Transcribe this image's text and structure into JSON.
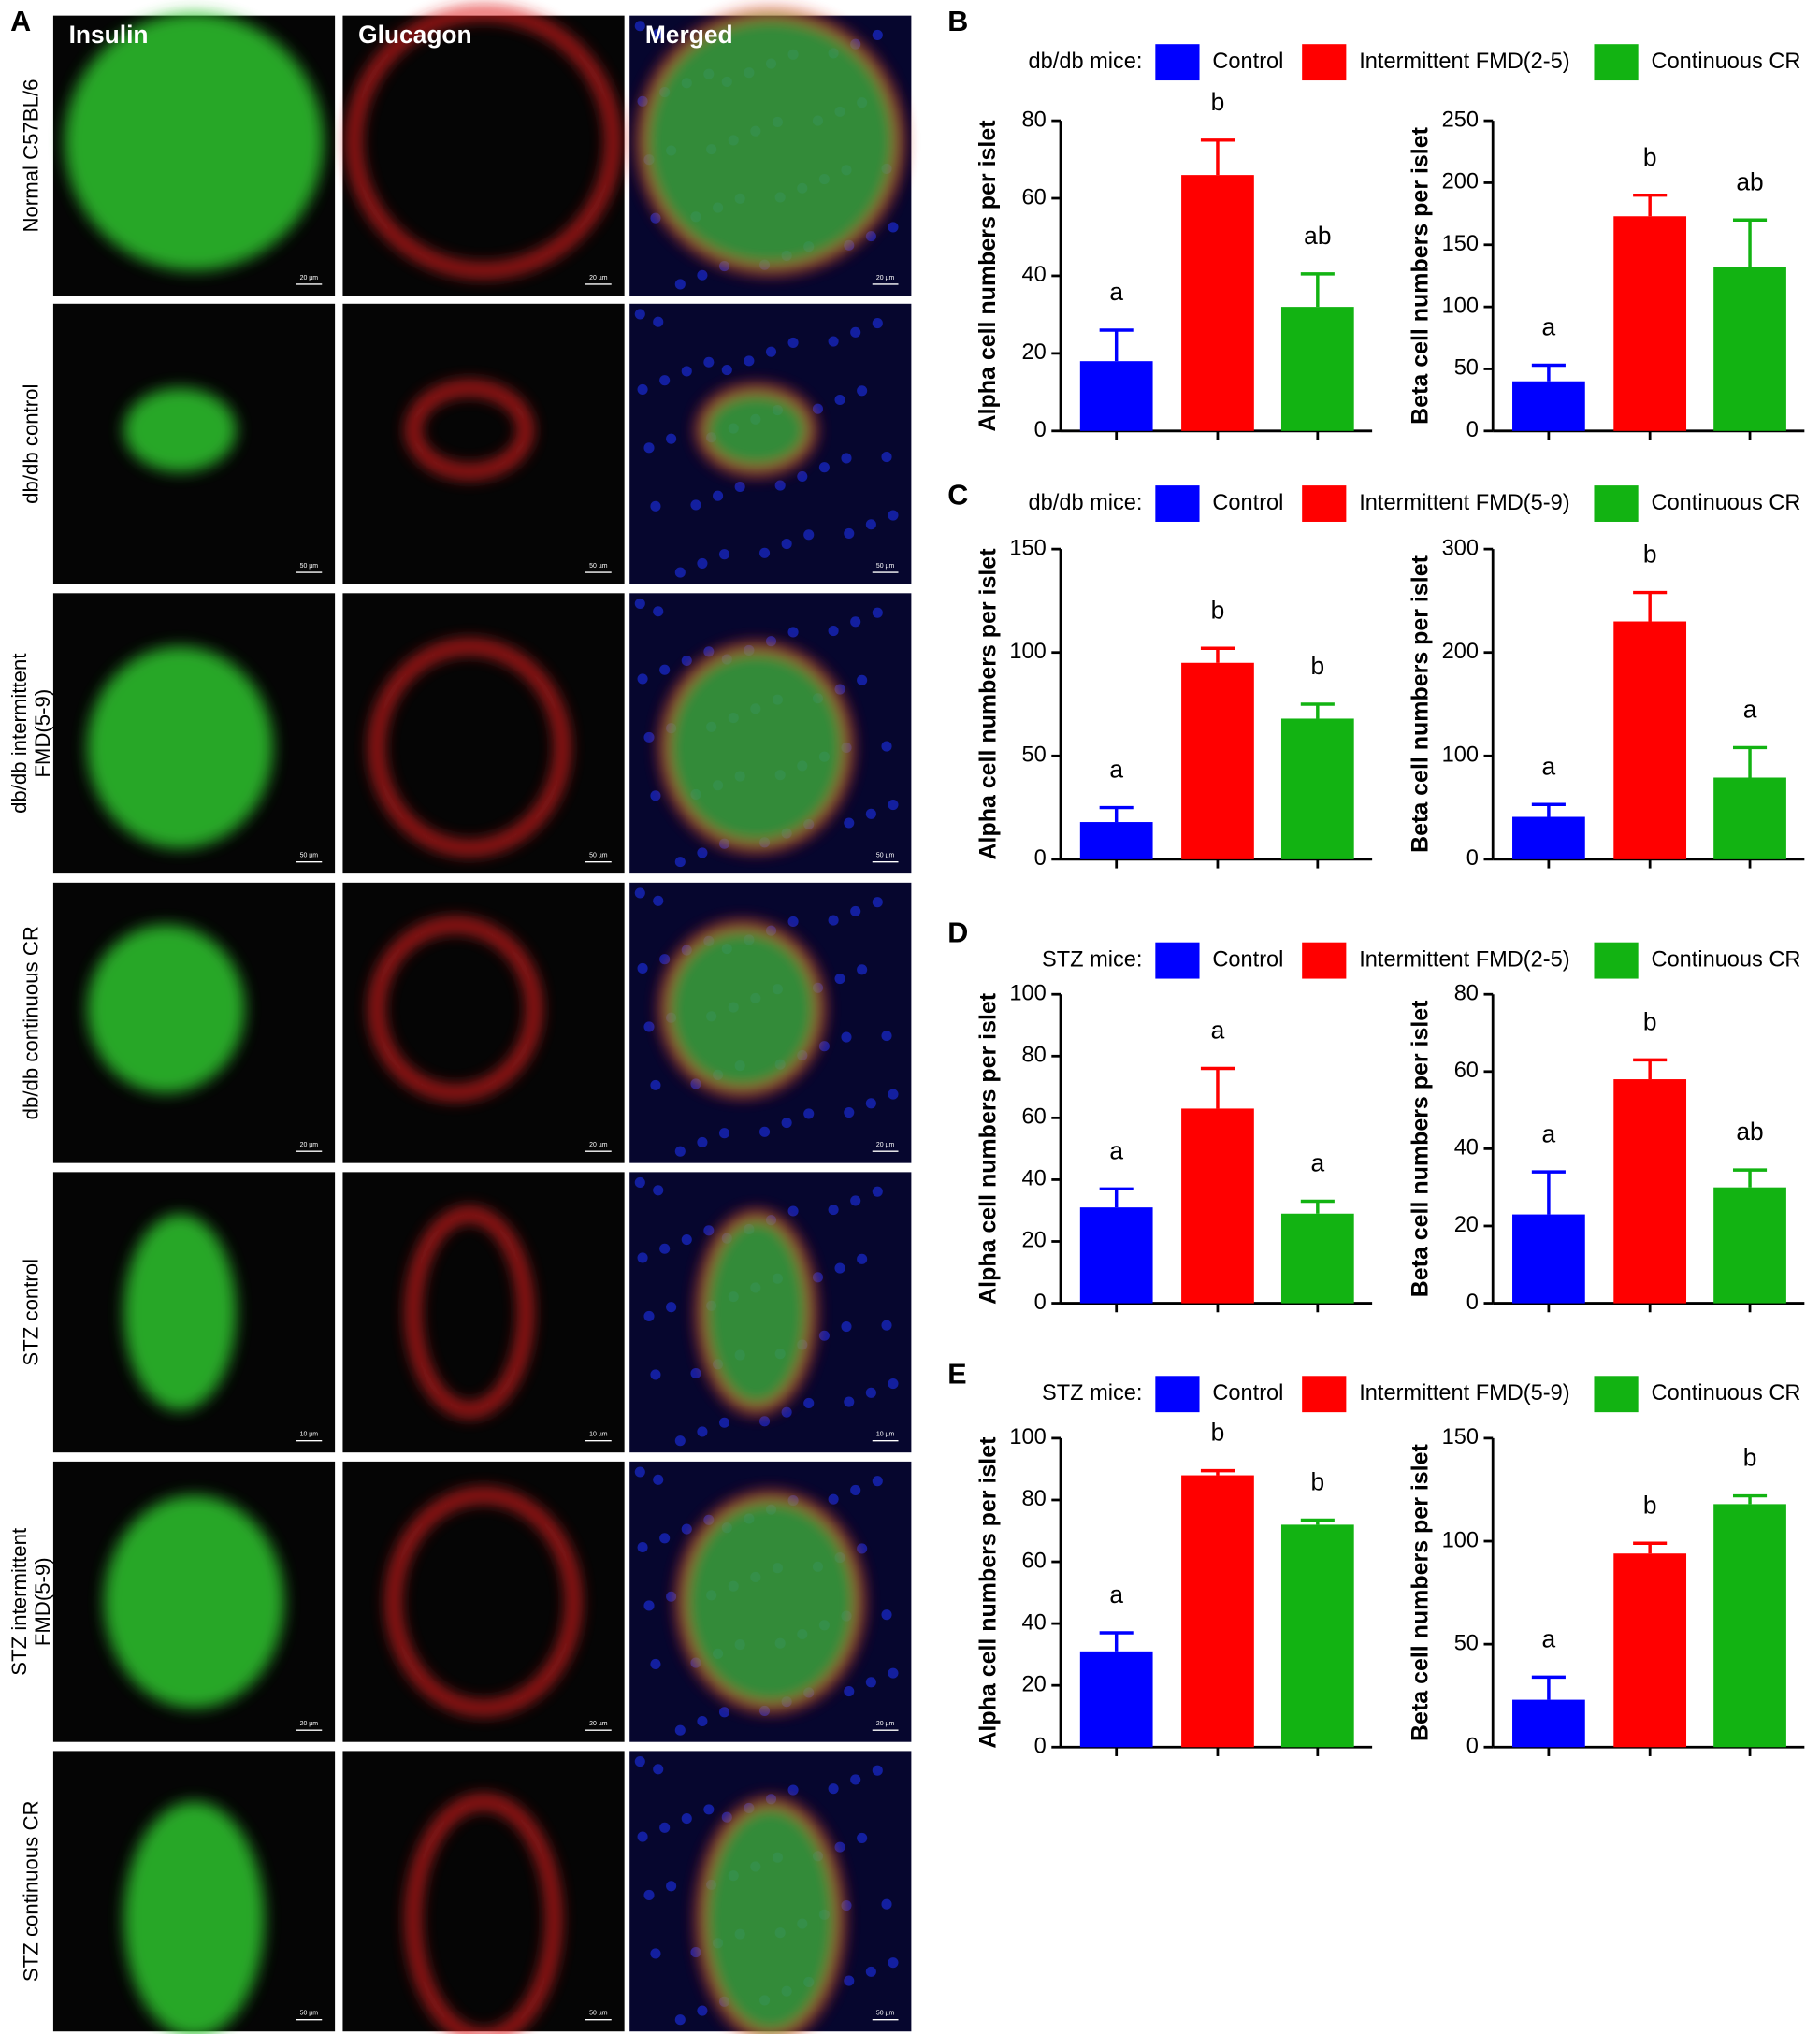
{
  "figure_a": {
    "letter": "A",
    "columns": [
      "Insulin",
      "Glucagon",
      "Merged"
    ],
    "rows": [
      {
        "label": [
          "Normal C57BL/6"
        ],
        "scale_bar": "20 µm"
      },
      {
        "label": [
          "db/db control"
        ],
        "scale_bar": "50 µm"
      },
      {
        "label": [
          "db/db intermittent",
          "FMD(5-9)"
        ],
        "scale_bar": "50 µm"
      },
      {
        "label": [
          "db/db continuous CR"
        ],
        "scale_bar": "20 µm"
      },
      {
        "label": [
          "STZ control"
        ],
        "scale_bar": "10 µm"
      },
      {
        "label": [
          "STZ intermittent",
          "FMD(5-9)"
        ],
        "scale_bar": "20 µm"
      },
      {
        "label": [
          "STZ continuous CR"
        ],
        "scale_bar": "50 µm"
      }
    ]
  },
  "chart_data": [
    {
      "type": "bar",
      "panel": "B",
      "legend_title": "db/db mice:",
      "series": [
        {
          "name": "Control",
          "color": "#0000ff"
        },
        {
          "name": "Intermittent FMD(2-5)",
          "color": "#ff0000"
        },
        {
          "name": "Continuous CR",
          "color": "#12b312"
        }
      ],
      "subplots": [
        {
          "ylabel": "Alpha cell numbers per islet",
          "values": [
            18,
            66,
            32
          ],
          "errors": [
            8,
            9,
            8.5
          ],
          "annotations": [
            "a",
            "b",
            "ab"
          ],
          "ylim": [
            0,
            80
          ],
          "yticks": [
            0,
            20,
            40,
            60,
            80
          ]
        },
        {
          "ylabel": "Beta cell numbers per islet",
          "values": [
            40,
            173,
            132
          ],
          "errors": [
            13,
            17,
            38
          ],
          "annotations": [
            "a",
            "b",
            "ab"
          ],
          "ylim": [
            0,
            250
          ],
          "yticks": [
            0,
            50,
            100,
            150,
            200,
            250
          ]
        }
      ]
    },
    {
      "type": "bar",
      "panel": "C",
      "legend_title": "db/db mice:",
      "series": [
        {
          "name": "Control",
          "color": "#0000ff"
        },
        {
          "name": "Intermittent FMD(5-9)",
          "color": "#ff0000"
        },
        {
          "name": "Continuous CR",
          "color": "#12b312"
        }
      ],
      "subplots": [
        {
          "ylabel": "Alpha cell numbers per islet",
          "values": [
            18,
            95,
            68
          ],
          "errors": [
            7,
            7,
            7
          ],
          "annotations": [
            "a",
            "b",
            "b"
          ],
          "ylim": [
            0,
            150
          ],
          "yticks": [
            0,
            50,
            100,
            150
          ]
        },
        {
          "ylabel": "Beta cell numbers per islet",
          "values": [
            41,
            230,
            79
          ],
          "errors": [
            12,
            28,
            29
          ],
          "annotations": [
            "a",
            "b",
            "a"
          ],
          "ylim": [
            0,
            300
          ],
          "yticks": [
            0,
            100,
            200,
            300
          ]
        }
      ]
    },
    {
      "type": "bar",
      "panel": "D",
      "legend_title": "STZ mice:",
      "series": [
        {
          "name": "Control",
          "color": "#0000ff"
        },
        {
          "name": "Intermittent FMD(2-5)",
          "color": "#ff0000"
        },
        {
          "name": "Continuous CR",
          "color": "#12b312"
        }
      ],
      "subplots": [
        {
          "ylabel": "Alpha cell numbers per islet",
          "values": [
            31,
            63,
            29
          ],
          "errors": [
            6,
            13,
            4
          ],
          "annotations": [
            "a",
            "a",
            "a"
          ],
          "ylim": [
            0,
            100
          ],
          "yticks": [
            0,
            20,
            40,
            60,
            80,
            100
          ]
        },
        {
          "ylabel": "Beta cell numbers per islet",
          "values": [
            23,
            58,
            30
          ],
          "errors": [
            11,
            5,
            4.5
          ],
          "annotations": [
            "a",
            "b",
            "ab"
          ],
          "ylim": [
            0,
            80
          ],
          "yticks": [
            0,
            20,
            40,
            60,
            80
          ]
        }
      ]
    },
    {
      "type": "bar",
      "panel": "E",
      "legend_title": "STZ mice:",
      "series": [
        {
          "name": "Control",
          "color": "#0000ff"
        },
        {
          "name": "Intermittent FMD(5-9)",
          "color": "#ff0000"
        },
        {
          "name": "Continuous CR",
          "color": "#12b312"
        }
      ],
      "subplots": [
        {
          "ylabel": "Alpha cell numbers per islet",
          "values": [
            31,
            88,
            72
          ],
          "errors": [
            6,
            1.5,
            1.5
          ],
          "annotations": [
            "a",
            "b",
            "b"
          ],
          "ylim": [
            0,
            100
          ],
          "yticks": [
            0,
            20,
            40,
            60,
            80,
            100
          ]
        },
        {
          "ylabel": "Beta cell numbers per islet",
          "values": [
            23,
            94,
            118
          ],
          "errors": [
            11,
            5,
            4
          ],
          "annotations": [
            "a",
            "b",
            "b"
          ],
          "ylim": [
            0,
            150
          ],
          "yticks": [
            0,
            50,
            100,
            150
          ]
        }
      ]
    }
  ]
}
